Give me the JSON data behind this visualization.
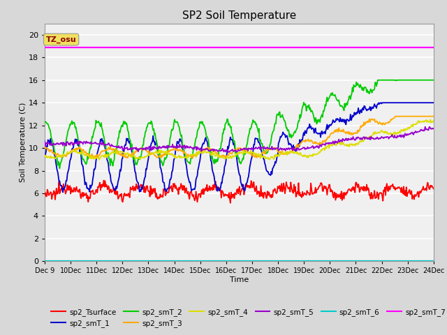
{
  "title": "SP2 Soil Temperature",
  "xlabel": "Time",
  "ylabel": "Soil Temperature (C)",
  "ylim": [
    0,
    21
  ],
  "yticks": [
    0,
    2,
    4,
    6,
    8,
    10,
    12,
    14,
    16,
    18,
    20
  ],
  "fig_bg_color": "#d8d8d8",
  "plot_bg_color": "#f0f0f0",
  "tz_label": "TZ_osu",
  "tz_box_color": "#f0e060",
  "tz_text_color": "#8b0000",
  "grid_color": "#ffffff",
  "series_colors": {
    "sp2_Tsurface": "#ff0000",
    "sp2_smT_1": "#0000cc",
    "sp2_smT_2": "#00cc00",
    "sp2_smT_3": "#ffaa00",
    "sp2_smT_4": "#dddd00",
    "sp2_smT_5": "#9900cc",
    "sp2_smT_6": "#00cccc",
    "sp2_smT_7": "#ff00ff"
  },
  "xlim": [
    9,
    24
  ],
  "xtick_positions": [
    9,
    10,
    11,
    12,
    13,
    14,
    15,
    16,
    17,
    18,
    19,
    20,
    21,
    22,
    23,
    24
  ],
  "xtick_labels": [
    "Dec 9",
    "Dec 10",
    "Dec 11",
    "Dec 12",
    "Dec 13",
    "Dec 14",
    "Dec 15",
    "Dec 16",
    "Dec 17",
    "Dec 18",
    "Dec 19",
    "Dec 20",
    "Dec 21",
    "Dec 22",
    "Dec 23",
    "Dec 24"
  ]
}
